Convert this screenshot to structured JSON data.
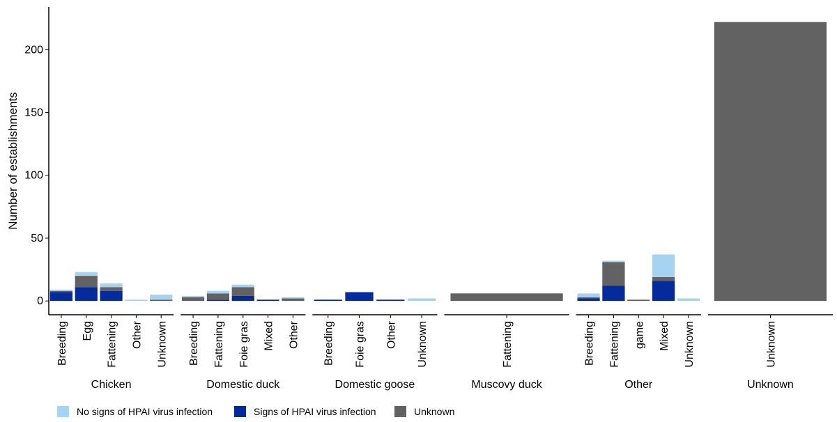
{
  "chart_data": {
    "type": "bar",
    "stacked": true,
    "faceted": true,
    "ylabel": "Number of establishments",
    "xlabel": "",
    "ylim": [
      -11,
      234
    ],
    "yticks": [
      0,
      50,
      100,
      150,
      200
    ],
    "legend_position": "bottom",
    "colors": {
      "no_signs": "#a6d3f2",
      "signs": "#052a9b",
      "unknown": "#626262"
    },
    "series": [
      {
        "key": "no_signs",
        "name": "No signs of HPAI virus infection"
      },
      {
        "key": "signs",
        "name": "Signs of HPAI virus infection"
      },
      {
        "key": "unknown",
        "name": "Unknown"
      }
    ],
    "groups": [
      {
        "name": "Chicken",
        "categories": [
          "Breeding",
          "Egg",
          "Fattening",
          "Other",
          "Unknown"
        ],
        "values": {
          "signs": [
            7,
            11,
            8,
            0,
            0
          ],
          "unknown": [
            1,
            9,
            3,
            0,
            1
          ],
          "no_signs": [
            1,
            3,
            3,
            1,
            4
          ]
        }
      },
      {
        "name": "Domestic duck",
        "categories": [
          "Breeding",
          "Fattening",
          "Foie gras",
          "Mixed",
          "Other"
        ],
        "values": {
          "signs": [
            0,
            1,
            4,
            1,
            0
          ],
          "unknown": [
            3,
            5,
            7,
            0,
            2
          ],
          "no_signs": [
            1,
            2,
            2,
            0,
            1
          ]
        }
      },
      {
        "name": "Domestic goose",
        "categories": [
          "Breeding",
          "Foie gras",
          "Other",
          "Unknown"
        ],
        "values": {
          "signs": [
            1,
            7,
            1,
            0
          ],
          "unknown": [
            0,
            0,
            0,
            0
          ],
          "no_signs": [
            0,
            0,
            0,
            2
          ]
        }
      },
      {
        "name": "Muscovy duck",
        "categories": [
          "Fattening"
        ],
        "values": {
          "signs": [
            0
          ],
          "unknown": [
            6
          ],
          "no_signs": [
            0
          ]
        }
      },
      {
        "name": "Other",
        "categories": [
          "Breeding",
          "Fattening",
          "game",
          "Mixed",
          "Unknown"
        ],
        "values": {
          "signs": [
            2,
            12,
            0,
            16,
            0
          ],
          "unknown": [
            1,
            19,
            1,
            3,
            0
          ],
          "no_signs": [
            3,
            1,
            0,
            18,
            2
          ]
        }
      },
      {
        "name": "Unknown",
        "categories": [
          "Unknown"
        ],
        "values": {
          "signs": [
            0
          ],
          "unknown": [
            222
          ],
          "no_signs": [
            0
          ]
        }
      }
    ]
  }
}
